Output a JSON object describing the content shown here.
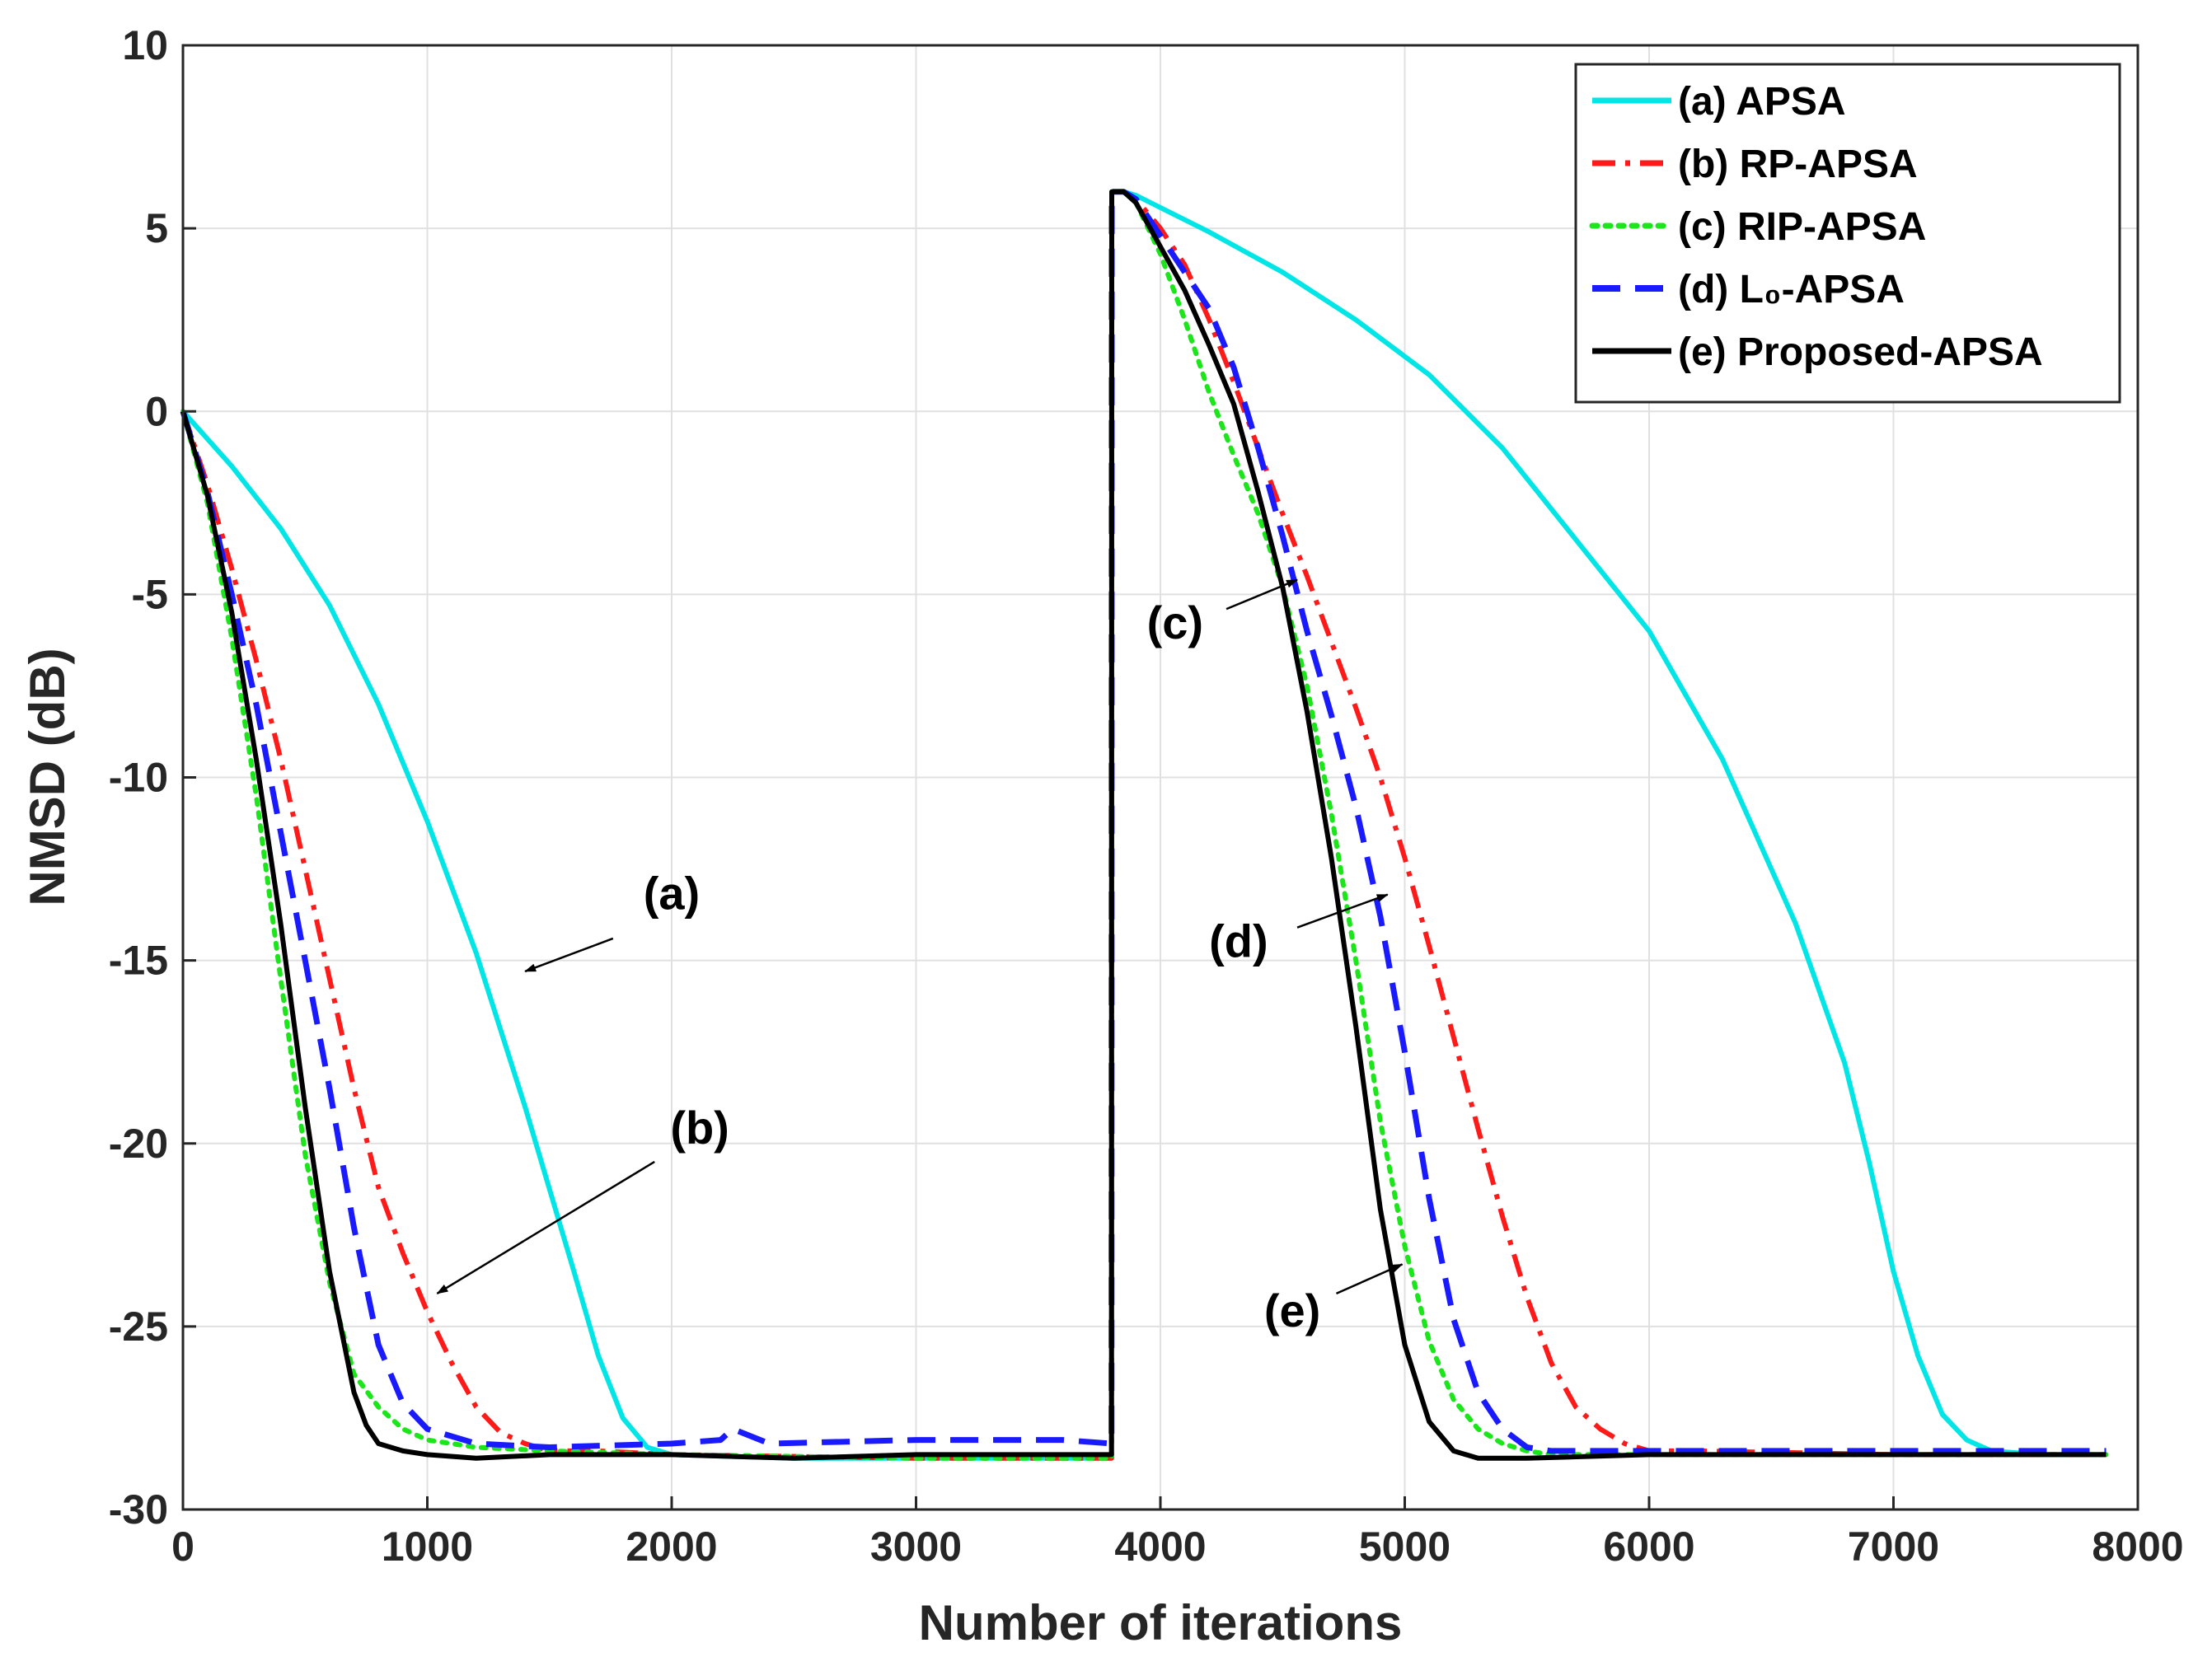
{
  "chart_data": {
    "type": "line",
    "title": "",
    "xlabel": "Number of iterations",
    "ylabel": "NMSD (dB)",
    "xlim": [
      0,
      8000
    ],
    "ylim": [
      -30,
      10
    ],
    "xticks": [
      0,
      1000,
      2000,
      3000,
      4000,
      5000,
      6000,
      7000,
      8000
    ],
    "xtick_labels": [
      "0",
      "1000",
      "2000",
      "3000",
      "4000",
      "5000",
      "6000",
      "7000",
      "8000"
    ],
    "yticks": [
      10,
      5,
      0,
      -5,
      -10,
      -15,
      -20,
      -25,
      -30
    ],
    "ytick_labels": [
      "10",
      "5",
      "0",
      "-5",
      "-10",
      "-15",
      "-20",
      "-25",
      "-30"
    ],
    "grid": true,
    "legend_position": "top-right",
    "series": [
      {
        "name": "(a) APSA",
        "color": "#00e6e6",
        "dash": "solid",
        "x": [
          0,
          200,
          400,
          600,
          800,
          1000,
          1200,
          1400,
          1600,
          1700,
          1800,
          1900,
          2000,
          2500,
          3000,
          3500,
          3800,
          3801,
          3850,
          3900,
          4200,
          4500,
          4800,
          5100,
          5400,
          5700,
          6000,
          6300,
          6600,
          6800,
          6900,
          7000,
          7100,
          7200,
          7300,
          7400,
          7600,
          7870
        ],
        "y": [
          0,
          -1.5,
          -3.2,
          -5.3,
          -8,
          -11.2,
          -14.8,
          -19,
          -23.5,
          -25.8,
          -27.5,
          -28.3,
          -28.5,
          -28.6,
          -28.6,
          -28.6,
          -28.6,
          6,
          6,
          5.9,
          4.9,
          3.8,
          2.5,
          1,
          -1,
          -3.5,
          -6,
          -9.5,
          -14,
          -17.8,
          -20.5,
          -23.5,
          -25.8,
          -27.4,
          -28.1,
          -28.4,
          -28.5,
          -28.5
        ]
      },
      {
        "name": "(b) RP-APSA",
        "color": "#ff1a1a",
        "dash": "dashdot",
        "x": [
          0,
          100,
          200,
          300,
          400,
          500,
          600,
          700,
          800,
          900,
          1000,
          1100,
          1200,
          1300,
          1400,
          1500,
          1700,
          2000,
          3000,
          3800,
          3801,
          3850,
          3900,
          4000,
          4100,
          4200,
          4300,
          4400,
          4500,
          4600,
          4700,
          4800,
          4900,
          5000,
          5100,
          5200,
          5300,
          5400,
          5500,
          5600,
          5700,
          5800,
          5900,
          6000,
          6200,
          7000,
          7870
        ],
        "y": [
          0,
          -2,
          -4.3,
          -6.8,
          -9.5,
          -12.5,
          -15.5,
          -18.5,
          -21.2,
          -23,
          -24.6,
          -26,
          -27.2,
          -27.9,
          -28.2,
          -28.4,
          -28.4,
          -28.5,
          -28.6,
          -28.6,
          6,
          6,
          5.8,
          5,
          4,
          2.5,
          0.8,
          -1,
          -2.8,
          -4.5,
          -6.3,
          -8.1,
          -10,
          -12.2,
          -14.6,
          -17.1,
          -19.6,
          -22,
          -24.2,
          -26,
          -27.2,
          -27.8,
          -28.2,
          -28.4,
          -28.4,
          -28.5,
          -28.5
        ]
      },
      {
        "name": "(c) RIP-APSA",
        "color": "#1ae61a",
        "dash": "dotted",
        "x": [
          0,
          100,
          200,
          300,
          400,
          500,
          600,
          700,
          800,
          900,
          1000,
          1200,
          1500,
          2000,
          3000,
          3800,
          3801,
          3850,
          3900,
          4000,
          4100,
          4200,
          4300,
          4400,
          4500,
          4600,
          4700,
          4800,
          4900,
          5000,
          5100,
          5200,
          5300,
          5400,
          5500,
          5600,
          5800,
          6500,
          7870
        ],
        "y": [
          0,
          -2.5,
          -6.2,
          -10.5,
          -15.5,
          -20.3,
          -23.8,
          -26.3,
          -27.2,
          -27.8,
          -28.1,
          -28.3,
          -28.4,
          -28.5,
          -28.6,
          -28.6,
          6,
          6,
          5.7,
          4.3,
          2.5,
          0.5,
          -1.2,
          -2.8,
          -4.8,
          -7.5,
          -11,
          -15,
          -19.4,
          -22.8,
          -25.4,
          -27,
          -27.8,
          -28.2,
          -28.4,
          -28.5,
          -28.5,
          -28.5,
          -28.5
        ]
      },
      {
        "name": "(d) L₀-APSA",
        "color": "#1a1aff",
        "dash": "dashed",
        "x": [
          0,
          100,
          200,
          300,
          400,
          500,
          600,
          700,
          800,
          900,
          1000,
          1200,
          1500,
          2000,
          2200,
          2250,
          2400,
          3000,
          3600,
          3800,
          3801,
          3850,
          3900,
          4000,
          4100,
          4200,
          4300,
          4400,
          4500,
          4600,
          4700,
          4800,
          4900,
          5000,
          5100,
          5200,
          5300,
          5400,
          5500,
          5600,
          6000,
          7870
        ],
        "y": [
          0,
          -2.2,
          -5,
          -8,
          -11.5,
          -15,
          -18.5,
          -22.3,
          -25.5,
          -27.1,
          -27.8,
          -28.2,
          -28.3,
          -28.2,
          -28.1,
          -27.8,
          -28.2,
          -28.1,
          -28.1,
          -28.2,
          6,
          6,
          5.8,
          4.8,
          3.8,
          2.8,
          1.2,
          -1,
          -3.4,
          -6,
          -8.3,
          -10.8,
          -13.8,
          -17.5,
          -21.5,
          -24.8,
          -26.8,
          -27.8,
          -28.3,
          -28.4,
          -28.4,
          -28.4
        ]
      },
      {
        "name": "(e) Proposed-APSA",
        "color": "#000000",
        "dash": "solid",
        "x": [
          0,
          100,
          200,
          300,
          400,
          500,
          600,
          700,
          750,
          800,
          900,
          1000,
          1200,
          1500,
          2000,
          2500,
          3000,
          3500,
          3800,
          3801,
          3850,
          3900,
          4000,
          4100,
          4200,
          4300,
          4400,
          4500,
          4600,
          4700,
          4800,
          4900,
          5000,
          5100,
          5200,
          5300,
          5500,
          6000,
          7000,
          7870
        ],
        "y": [
          0,
          -2.3,
          -5.5,
          -9.5,
          -14,
          -19,
          -23.5,
          -26.8,
          -27.7,
          -28.2,
          -28.4,
          -28.5,
          -28.6,
          -28.5,
          -28.5,
          -28.6,
          -28.5,
          -28.5,
          -28.5,
          6,
          6,
          5.7,
          4.5,
          3.3,
          1.8,
          0.2,
          -2.2,
          -4.8,
          -8.2,
          -12.2,
          -16.8,
          -21.8,
          -25.5,
          -27.6,
          -28.4,
          -28.6,
          -28.6,
          -28.5,
          -28.5,
          -28.5
        ]
      }
    ],
    "annotations": [
      {
        "text": "(a)",
        "label_x": 2000,
        "label_y": -13.2,
        "tail_x": 1760,
        "tail_y": -14.4,
        "tip_x": 1400,
        "tip_y": -15.3
      },
      {
        "text": "(b)",
        "label_x": 2115,
        "label_y": -19.6,
        "tail_x": 1930,
        "tail_y": -20.5,
        "tip_x": 1040,
        "tip_y": -24.1
      },
      {
        "text": "(c)",
        "label_x": 4060,
        "label_y": -5.8,
        "tail_x": 4270,
        "tail_y": -5.4,
        "tip_x": 4560,
        "tip_y": -4.6
      },
      {
        "text": "(d)",
        "label_x": 4320,
        "label_y": -14.5,
        "tail_x": 4560,
        "tail_y": -14.1,
        "tip_x": 4930,
        "tip_y": -13.2
      },
      {
        "text": "(e)",
        "label_x": 4540,
        "label_y": -24.6,
        "tail_x": 4720,
        "tail_y": -24.1,
        "tip_x": 4990,
        "tip_y": -23.3
      }
    ]
  }
}
